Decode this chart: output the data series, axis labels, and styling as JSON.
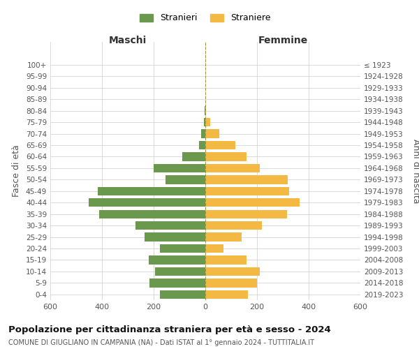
{
  "age_groups_bottom_to_top": [
    "0-4",
    "5-9",
    "10-14",
    "15-19",
    "20-24",
    "25-29",
    "30-34",
    "35-39",
    "40-44",
    "45-49",
    "50-54",
    "55-59",
    "60-64",
    "65-69",
    "70-74",
    "75-79",
    "80-84",
    "85-89",
    "90-94",
    "95-99",
    "100+"
  ],
  "birth_years_bottom_to_top": [
    "2019-2023",
    "2014-2018",
    "2009-2013",
    "2004-2008",
    "1999-2003",
    "1994-1998",
    "1989-1993",
    "1984-1988",
    "1979-1983",
    "1974-1978",
    "1969-1973",
    "1964-1968",
    "1959-1963",
    "1954-1958",
    "1949-1953",
    "1944-1948",
    "1939-1943",
    "1934-1938",
    "1929-1933",
    "1924-1928",
    "≤ 1923"
  ],
  "males_bottom_to_top": [
    175,
    215,
    195,
    220,
    175,
    235,
    270,
    410,
    450,
    415,
    155,
    200,
    90,
    25,
    15,
    5,
    3,
    0,
    0,
    0,
    0
  ],
  "females_bottom_to_top": [
    165,
    200,
    210,
    160,
    70,
    140,
    220,
    315,
    365,
    325,
    320,
    210,
    160,
    115,
    55,
    20,
    3,
    0,
    0,
    0,
    0
  ],
  "male_color": "#6a994e",
  "female_color": "#f4b942",
  "male_label": "Stranieri",
  "female_label": "Straniere",
  "title": "Popolazione per cittadinanza straniera per età e sesso - 2024",
  "subtitle": "COMUNE DI GIUGLIANO IN CAMPANIA (NA) - Dati ISTAT al 1° gennaio 2024 - TUTTITALIA.IT",
  "ylabel_left": "Fasce di età",
  "ylabel_right": "Anni di nascita",
  "xlabel_left": "Maschi",
  "xlabel_right": "Femmine",
  "xlim": 600,
  "background_color": "#ffffff",
  "grid_color": "#cccccc"
}
